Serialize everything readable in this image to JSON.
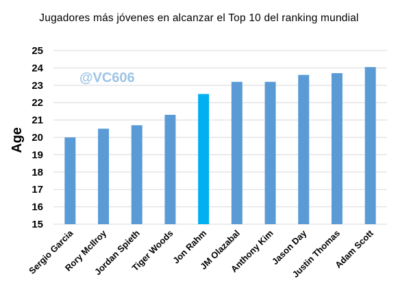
{
  "chart_data": {
    "type": "bar",
    "title": "Jugadores más jóvenes en alcanzar el Top 10 del ranking mundial",
    "xlabel": "",
    "ylabel": "Age",
    "ylim": [
      15,
      25
    ],
    "yticks": [
      15,
      16,
      17,
      18,
      19,
      20,
      21,
      22,
      23,
      24,
      25
    ],
    "grid": true,
    "legend": "none",
    "categories": [
      "Sergio Garcia",
      "Rory McIlroy",
      "Jordan Spieth",
      "Tiger Woods",
      "Jon Rahm",
      "JM Olazabal",
      "Anthony Kim",
      "Jason Day",
      "Justin Thomas",
      "Adam Scott"
    ],
    "values": [
      20.0,
      20.5,
      20.7,
      21.3,
      22.5,
      23.2,
      23.2,
      23.6,
      23.7,
      24.05
    ],
    "highlight_category": "Jon Rahm",
    "watermark": "@VC606",
    "colors": {
      "bar": "#5b9bd5",
      "highlight_bar": "#00b0f0",
      "grid": "#d9d9d9",
      "watermark": "#9dc3e6"
    }
  }
}
